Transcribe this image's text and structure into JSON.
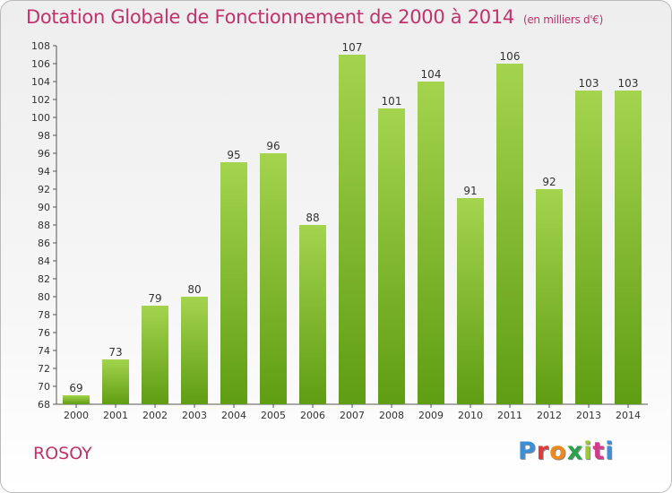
{
  "title": "Dotation Globale de Fonctionnement de 2000 à 2014",
  "subtitle": "(en milliers d'€)",
  "commune": "ROSOY",
  "logo": {
    "letters": [
      "P",
      "r",
      "o",
      "x",
      "i",
      "t",
      "i"
    ]
  },
  "colors": {
    "bar_light": "#a4d44e",
    "bar_dark": "#5f9d12",
    "title": "#c0336a"
  },
  "chart_data": {
    "type": "bar",
    "title": "Dotation Globale de Fonctionnement de 2000 à 2014",
    "subtitle": "(en milliers d'€)",
    "categories": [
      "2000",
      "2001",
      "2002",
      "2003",
      "2004",
      "2005",
      "2006",
      "2007",
      "2008",
      "2009",
      "2010",
      "2011",
      "2012",
      "2013",
      "2014"
    ],
    "values": [
      69,
      73,
      79,
      80,
      95,
      96,
      88,
      107,
      101,
      104,
      91,
      106,
      92,
      103,
      103
    ],
    "ylim": [
      68,
      108
    ],
    "yticks": [
      68,
      70,
      72,
      74,
      76,
      78,
      80,
      82,
      84,
      86,
      88,
      90,
      92,
      94,
      96,
      98,
      100,
      102,
      104,
      106,
      108
    ],
    "grid": false,
    "legend": "none"
  }
}
